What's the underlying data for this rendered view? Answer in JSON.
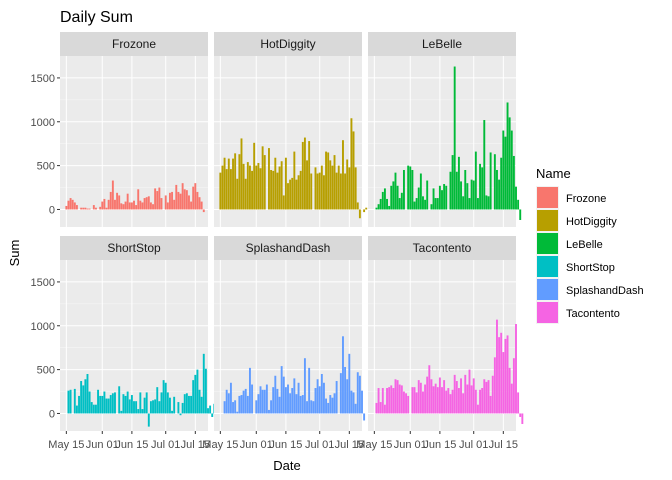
{
  "chart_data": {
    "type": "bar",
    "title": "Daily Sum",
    "xlabel": "Date",
    "ylabel": "Sum",
    "facet_layout": "2 rows x 3 columns",
    "ylim": [
      -200,
      1750
    ],
    "y_ticks": [
      0,
      500,
      1000,
      1500
    ],
    "xlim_days": [
      -3,
      67
    ],
    "x_ticks": [
      {
        "label": "May 15",
        "day": 0
      },
      {
        "label": "Jun 01",
        "day": 17
      },
      {
        "label": "Jun 15",
        "day": 31
      },
      {
        "label": "Jul 01",
        "day": 47
      },
      {
        "label": "Jul 15",
        "day": 61
      }
    ],
    "grid": true,
    "legend": {
      "title": "Name",
      "position": "right"
    },
    "series": [
      {
        "name": "Frozone",
        "color": "#F8766D",
        "values": [
          40,
          100,
          130,
          110,
          80,
          50,
          0,
          20,
          20,
          20,
          10,
          10,
          0,
          50,
          20,
          0,
          30,
          90,
          120,
          20,
          110,
          200,
          330,
          110,
          190,
          160,
          70,
          60,
          90,
          180,
          80,
          80,
          100,
          50,
          230,
          100,
          80,
          130,
          140,
          150,
          80,
          60,
          240,
          210,
          250,
          130,
          0,
          160,
          80,
          190,
          200,
          110,
          280,
          200,
          180,
          300,
          230,
          220,
          160,
          90,
          260,
          300,
          200,
          140,
          90,
          -30
        ]
      },
      {
        "name": "HotDiggity",
        "color": "#B79F00",
        "values": [
          420,
          500,
          590,
          460,
          580,
          460,
          580,
          640,
          350,
          630,
          810,
          520,
          350,
          540,
          500,
          440,
          760,
          500,
          530,
          470,
          720,
          620,
          0,
          700,
          450,
          440,
          590,
          420,
          490,
          550,
          160,
          590,
          300,
          340,
          360,
          660,
          340,
          390,
          440,
          770,
          820,
          560,
          780,
          410,
          0,
          480,
          410,
          420,
          500,
          390,
          660,
          650,
          560,
          500,
          620,
          420,
          500,
          410,
          790,
          410,
          570,
          480,
          1040,
          890,
          480,
          80,
          -100,
          0,
          -30,
          20
        ]
      },
      {
        "name": "LeBelle",
        "color": "#00BA38",
        "values": [
          0,
          20,
          60,
          120,
          200,
          240,
          120,
          40,
          270,
          320,
          420,
          270,
          130,
          190,
          450,
          0,
          500,
          490,
          450,
          90,
          130,
          250,
          410,
          150,
          110,
          330,
          0,
          60,
          240,
          130,
          130,
          270,
          220,
          290,
          270,
          0,
          430,
          620,
          1630,
          430,
          600,
          320,
          150,
          450,
          300,
          130,
          340,
          330,
          660,
          130,
          520,
          480,
          1020,
          160,
          150,
          650,
          0,
          630,
          450,
          340,
          590,
          900,
          830,
          1220,
          1050,
          900,
          610,
          260,
          110,
          -120
        ]
      },
      {
        "name": "ShortStop",
        "color": "#00BFC4",
        "values": [
          0,
          260,
          270,
          0,
          280,
          90,
          200,
          370,
          320,
          390,
          450,
          250,
          130,
          100,
          100,
          270,
          200,
          200,
          250,
          170,
          170,
          210,
          230,
          240,
          0,
          310,
          30,
          220,
          200,
          250,
          160,
          210,
          140,
          140,
          50,
          240,
          50,
          180,
          240,
          -150,
          140,
          150,
          160,
          300,
          140,
          240,
          380,
          350,
          240,
          180,
          30,
          190,
          0,
          130,
          -20,
          120,
          220,
          230,
          200,
          200,
          380,
          440,
          500,
          270,
          190,
          680,
          510,
          60,
          90,
          -40,
          110
        ]
      },
      {
        "name": "SplashandDash",
        "color": "#619CFF",
        "values": [
          0,
          0,
          140,
          270,
          230,
          350,
          130,
          150,
          20,
          200,
          210,
          260,
          280,
          200,
          520,
          330,
          0,
          150,
          220,
          310,
          270,
          270,
          330,
          40,
          150,
          300,
          430,
          280,
          190,
          540,
          420,
          300,
          330,
          230,
          290,
          400,
          220,
          350,
          200,
          210,
          630,
          140,
          520,
          150,
          140,
          290,
          390,
          310,
          450,
          350,
          170,
          120,
          210,
          180,
          230,
          370,
          0,
          460,
          880,
          530,
          390,
          680,
          260,
          240,
          110,
          470,
          430,
          260,
          -80
        ]
      },
      {
        "name": "Tacontento",
        "color": "#F564E3",
        "values": [
          0,
          120,
          290,
          130,
          290,
          100,
          290,
          300,
          320,
          290,
          390,
          380,
          330,
          320,
          250,
          230,
          200,
          0,
          300,
          300,
          240,
          380,
          350,
          250,
          330,
          420,
          550,
          390,
          310,
          340,
          300,
          410,
          300,
          380,
          260,
          290,
          220,
          270,
          440,
          370,
          290,
          400,
          230,
          440,
          330,
          500,
          320,
          400,
          270,
          100,
          270,
          290,
          390,
          360,
          380,
          200,
          430,
          640,
          1070,
          870,
          920,
          700,
          850,
          890,
          520,
          340,
          630,
          1020,
          240,
          -40,
          -120
        ]
      }
    ]
  }
}
